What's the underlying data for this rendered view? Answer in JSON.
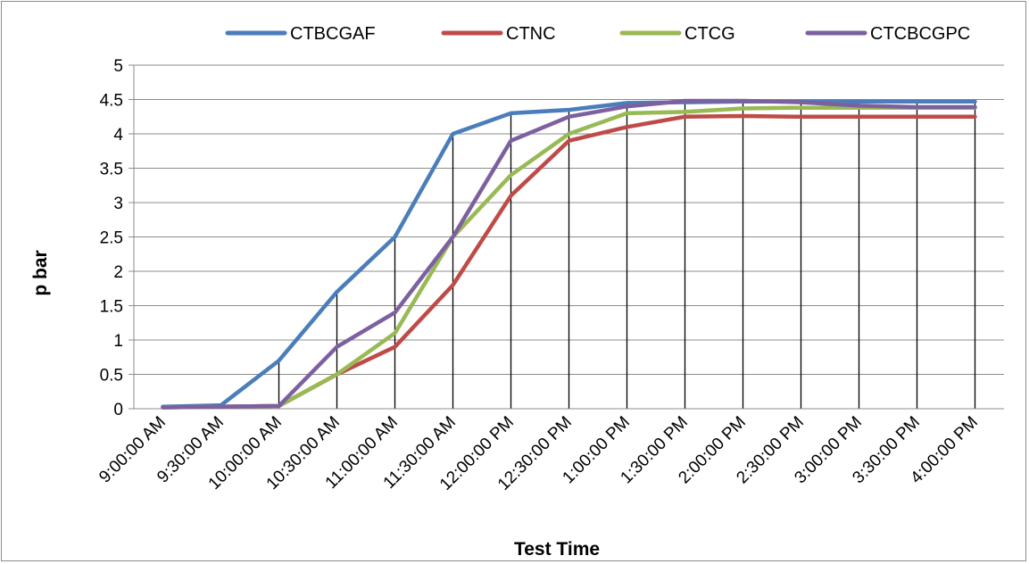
{
  "chart_data": {
    "type": "line",
    "title": "",
    "xlabel": "Test Time",
    "ylabel": "p  bar",
    "ylim": [
      0,
      5
    ],
    "yticks": [
      "0",
      "0.5",
      "1",
      "1.5",
      "2",
      "2.5",
      "3",
      "3.5",
      "4",
      "4.5",
      "5"
    ],
    "grid": true,
    "legend_position": "top",
    "categories": [
      "9:00:00 AM",
      "9:30:00 AM",
      "10:00:00 AM",
      "10:30:00 AM",
      "11:00:00 AM",
      "11:30:00 AM",
      "12:00:00 PM",
      "12:30:00 PM",
      "1:00:00 PM",
      "1:30:00 PM",
      "2:00:00 PM",
      "2:30:00 PM",
      "3:00:00 PM",
      "3:30:00 PM",
      "4:00:00 PM"
    ],
    "series": [
      {
        "name": "CTBCGAF",
        "color": "#4a7ebb",
        "values": [
          0.03,
          0.05,
          0.7,
          1.7,
          2.5,
          4.0,
          4.3,
          4.35,
          4.45,
          4.46,
          4.47,
          4.47,
          4.47,
          4.47,
          4.47
        ]
      },
      {
        "name": "CTNC",
        "color": "#be4b48",
        "values": [
          0.02,
          0.03,
          0.04,
          0.5,
          0.9,
          1.8,
          3.1,
          3.9,
          4.1,
          4.25,
          4.26,
          4.25,
          4.25,
          4.25,
          4.25
        ]
      },
      {
        "name": "CTCG",
        "color": "#98b954",
        "values": [
          0.02,
          0.03,
          0.04,
          0.5,
          1.1,
          2.5,
          3.4,
          4.0,
          4.3,
          4.32,
          4.37,
          4.38,
          4.38,
          4.38,
          4.38
        ]
      },
      {
        "name": "CTCBCGPC",
        "color": "#7d60a0",
        "values": [
          0.02,
          0.03,
          0.04,
          0.9,
          1.4,
          2.5,
          3.9,
          4.25,
          4.4,
          4.48,
          4.48,
          4.46,
          4.41,
          4.39,
          4.39
        ]
      }
    ]
  }
}
